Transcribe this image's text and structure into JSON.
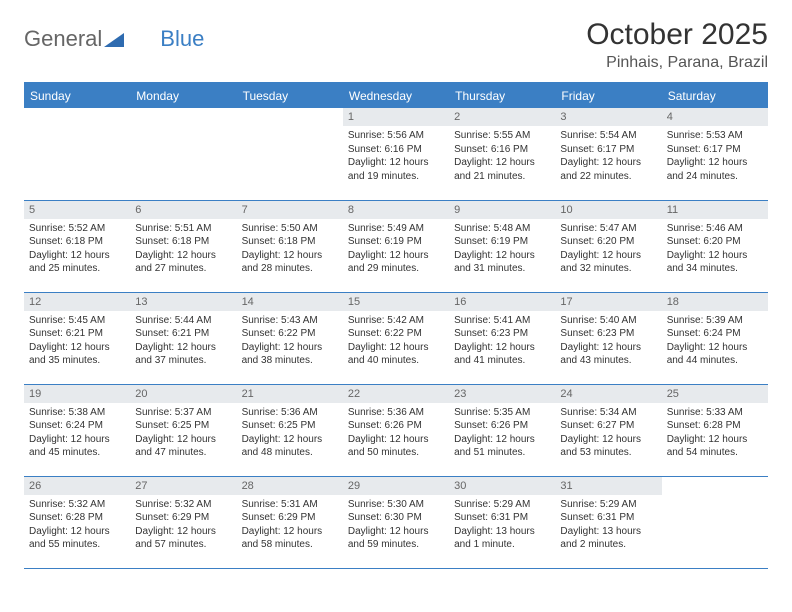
{
  "brand": {
    "part1": "General",
    "part2": "Blue"
  },
  "title": "October 2025",
  "location": "Pinhais, Parana, Brazil",
  "colors": {
    "header_bg": "#3b7fc4",
    "header_text": "#ffffff",
    "daynum_bg": "#e7eaed",
    "border": "#3b7fc4",
    "text": "#333333"
  },
  "day_headers": [
    "Sunday",
    "Monday",
    "Tuesday",
    "Wednesday",
    "Thursday",
    "Friday",
    "Saturday"
  ],
  "weeks": [
    [
      null,
      null,
      null,
      {
        "n": "1",
        "sunrise": "5:56 AM",
        "sunset": "6:16 PM",
        "daylight": "12 hours and 19 minutes."
      },
      {
        "n": "2",
        "sunrise": "5:55 AM",
        "sunset": "6:16 PM",
        "daylight": "12 hours and 21 minutes."
      },
      {
        "n": "3",
        "sunrise": "5:54 AM",
        "sunset": "6:17 PM",
        "daylight": "12 hours and 22 minutes."
      },
      {
        "n": "4",
        "sunrise": "5:53 AM",
        "sunset": "6:17 PM",
        "daylight": "12 hours and 24 minutes."
      }
    ],
    [
      {
        "n": "5",
        "sunrise": "5:52 AM",
        "sunset": "6:18 PM",
        "daylight": "12 hours and 25 minutes."
      },
      {
        "n": "6",
        "sunrise": "5:51 AM",
        "sunset": "6:18 PM",
        "daylight": "12 hours and 27 minutes."
      },
      {
        "n": "7",
        "sunrise": "5:50 AM",
        "sunset": "6:18 PM",
        "daylight": "12 hours and 28 minutes."
      },
      {
        "n": "8",
        "sunrise": "5:49 AM",
        "sunset": "6:19 PM",
        "daylight": "12 hours and 29 minutes."
      },
      {
        "n": "9",
        "sunrise": "5:48 AM",
        "sunset": "6:19 PM",
        "daylight": "12 hours and 31 minutes."
      },
      {
        "n": "10",
        "sunrise": "5:47 AM",
        "sunset": "6:20 PM",
        "daylight": "12 hours and 32 minutes."
      },
      {
        "n": "11",
        "sunrise": "5:46 AM",
        "sunset": "6:20 PM",
        "daylight": "12 hours and 34 minutes."
      }
    ],
    [
      {
        "n": "12",
        "sunrise": "5:45 AM",
        "sunset": "6:21 PM",
        "daylight": "12 hours and 35 minutes."
      },
      {
        "n": "13",
        "sunrise": "5:44 AM",
        "sunset": "6:21 PM",
        "daylight": "12 hours and 37 minutes."
      },
      {
        "n": "14",
        "sunrise": "5:43 AM",
        "sunset": "6:22 PM",
        "daylight": "12 hours and 38 minutes."
      },
      {
        "n": "15",
        "sunrise": "5:42 AM",
        "sunset": "6:22 PM",
        "daylight": "12 hours and 40 minutes."
      },
      {
        "n": "16",
        "sunrise": "5:41 AM",
        "sunset": "6:23 PM",
        "daylight": "12 hours and 41 minutes."
      },
      {
        "n": "17",
        "sunrise": "5:40 AM",
        "sunset": "6:23 PM",
        "daylight": "12 hours and 43 minutes."
      },
      {
        "n": "18",
        "sunrise": "5:39 AM",
        "sunset": "6:24 PM",
        "daylight": "12 hours and 44 minutes."
      }
    ],
    [
      {
        "n": "19",
        "sunrise": "5:38 AM",
        "sunset": "6:24 PM",
        "daylight": "12 hours and 45 minutes."
      },
      {
        "n": "20",
        "sunrise": "5:37 AM",
        "sunset": "6:25 PM",
        "daylight": "12 hours and 47 minutes."
      },
      {
        "n": "21",
        "sunrise": "5:36 AM",
        "sunset": "6:25 PM",
        "daylight": "12 hours and 48 minutes."
      },
      {
        "n": "22",
        "sunrise": "5:36 AM",
        "sunset": "6:26 PM",
        "daylight": "12 hours and 50 minutes."
      },
      {
        "n": "23",
        "sunrise": "5:35 AM",
        "sunset": "6:26 PM",
        "daylight": "12 hours and 51 minutes."
      },
      {
        "n": "24",
        "sunrise": "5:34 AM",
        "sunset": "6:27 PM",
        "daylight": "12 hours and 53 minutes."
      },
      {
        "n": "25",
        "sunrise": "5:33 AM",
        "sunset": "6:28 PM",
        "daylight": "12 hours and 54 minutes."
      }
    ],
    [
      {
        "n": "26",
        "sunrise": "5:32 AM",
        "sunset": "6:28 PM",
        "daylight": "12 hours and 55 minutes."
      },
      {
        "n": "27",
        "sunrise": "5:32 AM",
        "sunset": "6:29 PM",
        "daylight": "12 hours and 57 minutes."
      },
      {
        "n": "28",
        "sunrise": "5:31 AM",
        "sunset": "6:29 PM",
        "daylight": "12 hours and 58 minutes."
      },
      {
        "n": "29",
        "sunrise": "5:30 AM",
        "sunset": "6:30 PM",
        "daylight": "12 hours and 59 minutes."
      },
      {
        "n": "30",
        "sunrise": "5:29 AM",
        "sunset": "6:31 PM",
        "daylight": "13 hours and 1 minute."
      },
      {
        "n": "31",
        "sunrise": "5:29 AM",
        "sunset": "6:31 PM",
        "daylight": "13 hours and 2 minutes."
      },
      null
    ]
  ],
  "labels": {
    "sunrise": "Sunrise:",
    "sunset": "Sunset:",
    "daylight": "Daylight:"
  }
}
